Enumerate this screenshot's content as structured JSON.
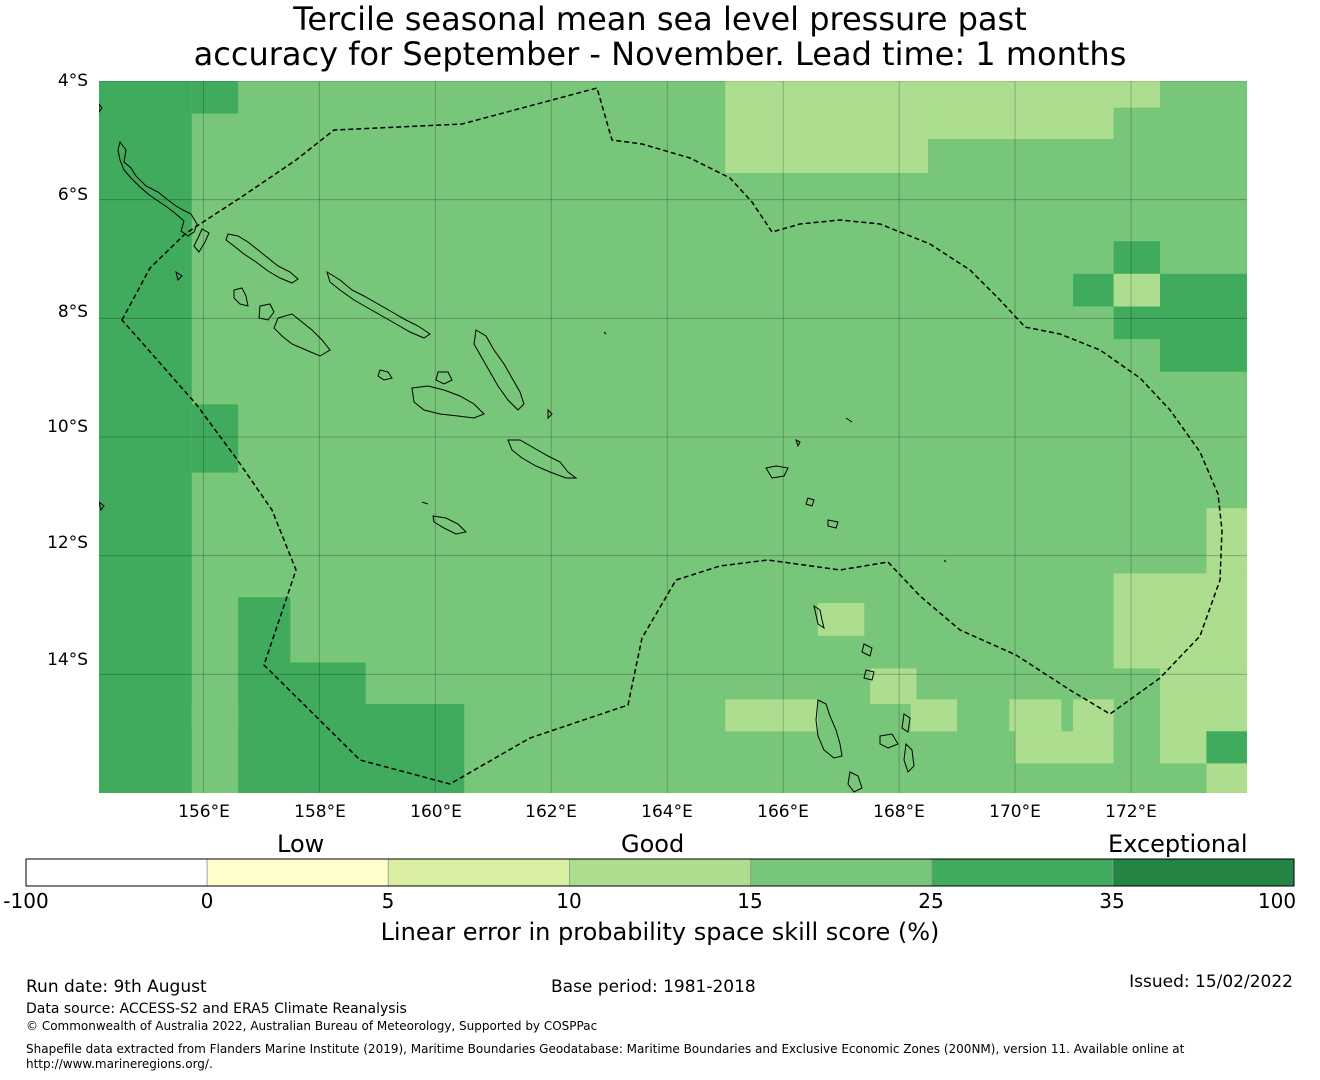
{
  "title": {
    "line1": "Tercile seasonal mean sea level pressure past",
    "line2": "accuracy for September - November. Lead time: 1 months"
  },
  "map": {
    "lon_min": 154.2,
    "lon_max": 174.0,
    "lat_min": -16.0,
    "lat_max": -4.0,
    "lat_labels": [
      "4°S",
      "6°S",
      "8°S",
      "10°S",
      "12°S",
      "14°S"
    ],
    "lon_labels": [
      "156°E",
      "158°E",
      "160°E",
      "162°E",
      "164°E",
      "166°E",
      "168°E",
      "170°E",
      "172°E"
    ],
    "gridlines": true,
    "eez_boundary": "dashed",
    "base_color": "#78c679",
    "patches": [
      {
        "lon": [
          154.2,
          155.8
        ],
        "lat": [
          -16.0,
          -4.0
        ],
        "color": "#41ab5d"
      },
      {
        "lon": [
          155.8,
          156.6
        ],
        "lat": [
          -4.55,
          -4.0
        ],
        "color": "#41ab5d"
      },
      {
        "lon": [
          155.8,
          156.6
        ],
        "lat": [
          -10.6,
          -9.45
        ],
        "color": "#41ab5d"
      },
      {
        "lon": [
          156.6,
          157.5
        ],
        "lat": [
          -16.0,
          -12.7
        ],
        "color": "#41ab5d"
      },
      {
        "lon": [
          157.5,
          158.8
        ],
        "lat": [
          -16.0,
          -13.8
        ],
        "color": "#41ab5d"
      },
      {
        "lon": [
          158.8,
          160.5
        ],
        "lat": [
          -16.0,
          -14.5
        ],
        "color": "#41ab5d"
      },
      {
        "lon": [
          171.7,
          172.5
        ],
        "lat": [
          -7.25,
          -6.7
        ],
        "color": "#41ab5d"
      },
      {
        "lon": [
          171.0,
          171.7
        ],
        "lat": [
          -7.8,
          -7.25
        ],
        "color": "#41ab5d"
      },
      {
        "lon": [
          172.5,
          174.0
        ],
        "lat": [
          -8.9,
          -7.25
        ],
        "color": "#41ab5d"
      },
      {
        "lon": [
          171.7,
          172.5
        ],
        "lat": [
          -8.35,
          -7.8
        ],
        "color": "#41ab5d"
      },
      {
        "lon": [
          155.8,
          156.6
        ],
        "lat": [
          -14.96,
          -14.42
        ],
        "color": "#78c679"
      },
      {
        "lon": [
          165.0,
          168.5
        ],
        "lat": [
          -5.55,
          -4.0
        ],
        "color": "#addd8e"
      },
      {
        "lon": [
          168.5,
          171.7
        ],
        "lat": [
          -4.98,
          -4.0
        ],
        "color": "#addd8e"
      },
      {
        "lon": [
          171.7,
          172.5
        ],
        "lat": [
          -4.45,
          -4.0
        ],
        "color": "#addd8e"
      },
      {
        "lon": [
          171.7,
          172.5
        ],
        "lat": [
          -7.8,
          -7.25
        ],
        "color": "#addd8e"
      },
      {
        "lon": [
          166.6,
          167.4
        ],
        "lat": [
          -13.35,
          -12.8
        ],
        "color": "#addd8e"
      },
      {
        "lon": [
          167.5,
          168.3
        ],
        "lat": [
          -14.5,
          -13.9
        ],
        "color": "#addd8e"
      },
      {
        "lon": [
          165.0,
          166.6
        ],
        "lat": [
          -14.96,
          -14.42
        ],
        "color": "#addd8e"
      },
      {
        "lon": [
          168.2,
          169.0
        ],
        "lat": [
          -14.96,
          -14.42
        ],
        "color": "#addd8e"
      },
      {
        "lon": [
          169.9,
          170.8
        ],
        "lat": [
          -14.96,
          -14.42
        ],
        "color": "#addd8e"
      },
      {
        "lon": [
          170.0,
          171.7
        ],
        "lat": [
          -15.5,
          -14.96
        ],
        "color": "#addd8e"
      },
      {
        "lon": [
          171.0,
          171.7
        ],
        "lat": [
          -14.96,
          -14.42
        ],
        "color": "#addd8e"
      },
      {
        "lon": [
          173.3,
          174.0
        ],
        "lat": [
          -12.3,
          -11.2
        ],
        "color": "#addd8e"
      },
      {
        "lon": [
          171.7,
          174.0
        ],
        "lat": [
          -13.9,
          -12.3
        ],
        "color": "#addd8e"
      },
      {
        "lon": [
          172.5,
          174.0
        ],
        "lat": [
          -15.5,
          -13.9
        ],
        "color": "#addd8e"
      },
      {
        "lon": [
          173.3,
          174.0
        ],
        "lat": [
          -16.0,
          -15.5
        ],
        "color": "#addd8e"
      },
      {
        "lon": [
          173.3,
          174.0
        ],
        "lat": [
          -15.5,
          -14.96
        ],
        "color": "#41ab5d"
      }
    ]
  },
  "legend": {
    "categories": [
      "Low",
      "Good",
      "Exceptional"
    ],
    "bins": [
      {
        "from": -100,
        "to": 0,
        "color": "#ffffff"
      },
      {
        "from": 0,
        "to": 5,
        "color": "#ffffcc"
      },
      {
        "from": 5,
        "to": 10,
        "color": "#d9f0a3"
      },
      {
        "from": 10,
        "to": 15,
        "color": "#addd8e"
      },
      {
        "from": 15,
        "to": 25,
        "color": "#78c679"
      },
      {
        "from": 25,
        "to": 35,
        "color": "#41ab5d"
      },
      {
        "from": 35,
        "to": 100,
        "color": "#238443"
      }
    ],
    "tick_labels": [
      "-100",
      "0",
      "5",
      "10",
      "15",
      "25",
      "35",
      "100"
    ],
    "label": "Linear error in probability space skill score (%)"
  },
  "footer": {
    "run_date": "Run date: 9th August",
    "base_period": "Base period: 1981-2018",
    "issued": "Issued: 15/02/2022",
    "data_source": "Data source: ACCESS-S2 and ERA5 Climate Reanalysis",
    "copyright": "© Commonwealth of Australia 2022, Australian Bureau of Meteorology, Supported by COSPPac",
    "shapefile_line1": "Shapefile data extracted from Flanders Marine Institute (2019), Maritime Boundaries Geodatabase: Maritime Boundaries and Exclusive Economic Zones (200NM), version 11. Available online at",
    "shapefile_line2": "http://www.marineregions.org/."
  }
}
